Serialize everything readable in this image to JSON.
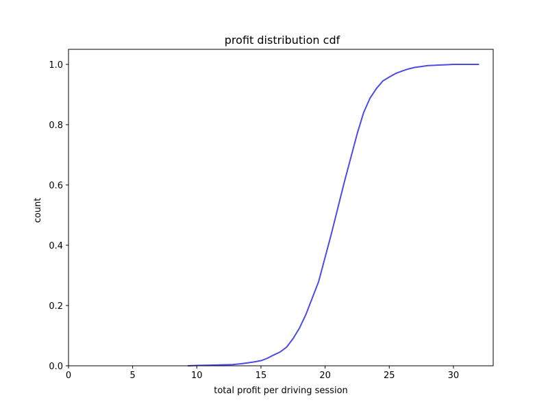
{
  "chart_data": {
    "type": "line",
    "title": "profit distribution cdf",
    "xlabel": "total profit per driving session",
    "ylabel": "count",
    "xlim": [
      0,
      33.1
    ],
    "ylim": [
      0,
      1.05
    ],
    "x_ticks": [
      0,
      5,
      10,
      15,
      20,
      25,
      30
    ],
    "y_ticks": [
      0.0,
      0.2,
      0.4,
      0.6,
      0.8,
      1.0
    ],
    "x_tick_labels": [
      "0",
      "5",
      "10",
      "15",
      "20",
      "25",
      "30"
    ],
    "y_tick_labels": [
      "0.0",
      "0.2",
      "0.4",
      "0.6",
      "0.8",
      "1.0"
    ],
    "grid": false,
    "series": [
      {
        "color": "#4a4ae8",
        "x": [
          9.3,
          10,
          11,
          12,
          12.8,
          13.5,
          14,
          14.5,
          15,
          15.5,
          16,
          16.5,
          17,
          17.5,
          18,
          18.5,
          19,
          19.5,
          20,
          20.5,
          21,
          21.5,
          22,
          22.5,
          23,
          23.5,
          24,
          24.5,
          25,
          25.5,
          26,
          26.5,
          27,
          27.5,
          28,
          28.5,
          29,
          29.5,
          30,
          31,
          32
        ],
        "y": [
          0.0,
          0.001,
          0.002,
          0.003,
          0.004,
          0.007,
          0.01,
          0.013,
          0.017,
          0.025,
          0.036,
          0.046,
          0.062,
          0.09,
          0.125,
          0.17,
          0.225,
          0.28,
          0.36,
          0.44,
          0.525,
          0.61,
          0.69,
          0.77,
          0.84,
          0.888,
          0.92,
          0.945,
          0.958,
          0.97,
          0.978,
          0.985,
          0.99,
          0.993,
          0.996,
          0.997,
          0.998,
          0.999,
          1.0,
          1.0,
          1.0
        ]
      }
    ]
  }
}
